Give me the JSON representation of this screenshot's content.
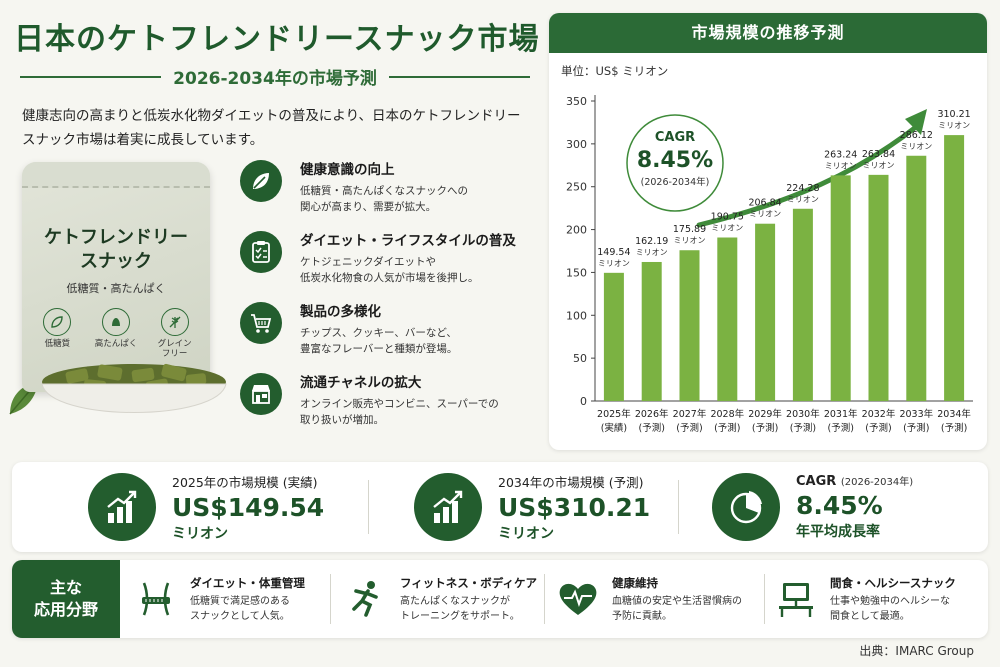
{
  "header": {
    "title": "日本のケトフレンドリースナック市場",
    "subtitle": "2026-2034年の市場予測",
    "intro": "健康志向の高まりと低炭水化物ダイエットの普及により、日本のケトフレンドリースナック市場は着実に成長しています。"
  },
  "package": {
    "name": "ケトフレンドリー\nスナック",
    "sub": "低糖質・高たんぱく",
    "badges": [
      {
        "label": "低糖質",
        "icon": "leaf-icon"
      },
      {
        "label": "高たんぱく",
        "icon": "protein-icon"
      },
      {
        "label": "グレイン\nフリー",
        "icon": "wheat-icon"
      }
    ]
  },
  "features": [
    {
      "title": "健康意識の向上",
      "desc": "低糖質・高たんぱくなスナックへの\n関心が高まり、需要が拡大。",
      "icon": "leaf-icon"
    },
    {
      "title": "ダイエット・ライフスタイルの普及",
      "desc": "ケトジェニックダイエットや\n低炭水化物食の人気が市場を後押し。",
      "icon": "clipboard-icon"
    },
    {
      "title": "製品の多様化",
      "desc": "チップス、クッキー、バーなど、\n豊富なフレーバーと種類が登場。",
      "icon": "cart-icon"
    },
    {
      "title": "流通チャネルの拡大",
      "desc": "オンライン販売やコンビニ、スーパーでの\n取り扱いが増加。",
      "icon": "store-icon"
    }
  ],
  "chart_panel": {
    "header": "市場規模の推移予測",
    "unit_label": "単位：US$ ミリオン",
    "cagr": {
      "label": "CAGR",
      "value": "8.45%",
      "range": "(2026-2034年)"
    }
  },
  "chart_data": {
    "type": "bar",
    "categories": [
      "2025年",
      "2026年",
      "2027年",
      "2028年",
      "2029年",
      "2030年",
      "2031年",
      "2032年",
      "2033年",
      "2034年"
    ],
    "category_notes": [
      "(実績)",
      "(予測)",
      "(予測)",
      "(予測)",
      "(予測)",
      "(予測)",
      "(予測)",
      "(予測)",
      "(予測)",
      "(予測)"
    ],
    "values": [
      149.54,
      162.19,
      175.89,
      190.75,
      206.84,
      224.28,
      263.24,
      263.84,
      286.12,
      310.21
    ],
    "data_label_unit": "ミリオン",
    "ylim": [
      0,
      350
    ],
    "yticks": [
      0,
      50,
      100,
      150,
      200,
      250,
      300,
      350
    ],
    "bar_color": "#7bb242",
    "grid": false,
    "legend": "none"
  },
  "stats": [
    {
      "label": "2025年の市場規模 (実績)",
      "value": "US$149.54",
      "unit": "ミリオン",
      "icon": "bar-growth-icon"
    },
    {
      "label": "2034年の市場規模 (予測)",
      "value": "US$310.21",
      "unit": "ミリオン",
      "icon": "bar-growth-icon"
    },
    {
      "label": "CAGR",
      "range": "(2026-2034年)",
      "value": "8.45%",
      "unit": "年平均成長率",
      "icon": "pie-chart-icon"
    }
  ],
  "applications": {
    "label": "主な\n応用分野",
    "items": [
      {
        "title": "ダイエット・体重管理",
        "desc": "低糖質で満足感のある\nスナックとして人気。",
        "icon": "waist-measure-icon"
      },
      {
        "title": "フィットネス・ボディケア",
        "desc": "高たんぱくなスナックが\nトレーニングをサポート。",
        "icon": "runner-icon"
      },
      {
        "title": "健康維持",
        "desc": "血糖値の安定や生活習慣病の\n予防に貢献。",
        "icon": "heart-pulse-icon"
      },
      {
        "title": "間食・ヘルシースナック",
        "desc": "仕事や勉強中のヘルシーな\n間食として最適。",
        "icon": "desk-computer-icon"
      }
    ]
  },
  "source": "出典：IMARC Group",
  "colors": {
    "primary": "#235d2e",
    "bar": "#7bb242",
    "background": "#f6f6f1"
  }
}
